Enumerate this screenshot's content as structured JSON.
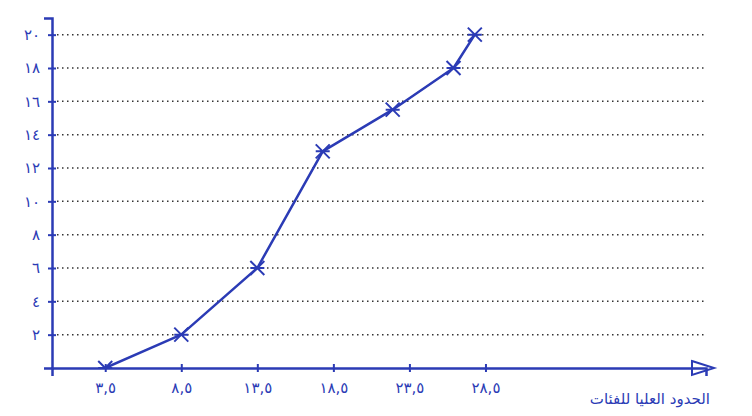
{
  "chart_data": {
    "type": "line",
    "x_label": "الحدود العليا للفئات",
    "x": [
      3.5,
      8.5,
      13.5,
      17.8,
      22.4,
      26.4,
      27.8
    ],
    "values": [
      0,
      2,
      6,
      13,
      15.5,
      18,
      20
    ],
    "color": "#2b3bb5",
    "marker": "x",
    "line_style": "solid",
    "xlim": [
      0,
      43
    ],
    "ylim": [
      0,
      21
    ],
    "xticks": [
      {
        "value": 3.5,
        "label": "٣,٥"
      },
      {
        "value": 8.5,
        "label": "٨,٥"
      },
      {
        "value": 13.5,
        "label": "١٣,٥"
      },
      {
        "value": 18.5,
        "label": "١٨,٥"
      },
      {
        "value": 23.5,
        "label": "٢٣,٥"
      },
      {
        "value": 28.5,
        "label": "٢٨,٥"
      }
    ],
    "yticks": [
      {
        "value": 2,
        "label": "٢"
      },
      {
        "value": 4,
        "label": "٤"
      },
      {
        "value": 6,
        "label": "٦"
      },
      {
        "value": 8,
        "label": "٨"
      },
      {
        "value": 10,
        "label": "١٠"
      },
      {
        "value": 12,
        "label": "١٢"
      },
      {
        "value": 14,
        "label": "١٤"
      },
      {
        "value": 16,
        "label": "١٦"
      },
      {
        "value": 18,
        "label": "١٨"
      },
      {
        "value": 20,
        "label": "٢٠"
      }
    ],
    "grid": true
  }
}
